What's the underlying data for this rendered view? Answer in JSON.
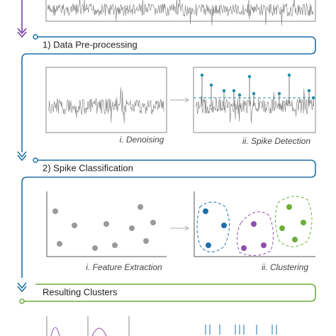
{
  "stages": [
    {
      "title": "1) Data Pre-processing",
      "steps": [
        "i. Denoising",
        "ii. Spike Detection"
      ]
    },
    {
      "title": "2) Spike Classification",
      "steps": [
        "i. Feature Extraction",
        "ii. Clustering"
      ]
    },
    {
      "title": "Resulting Clusters"
    }
  ]
}
